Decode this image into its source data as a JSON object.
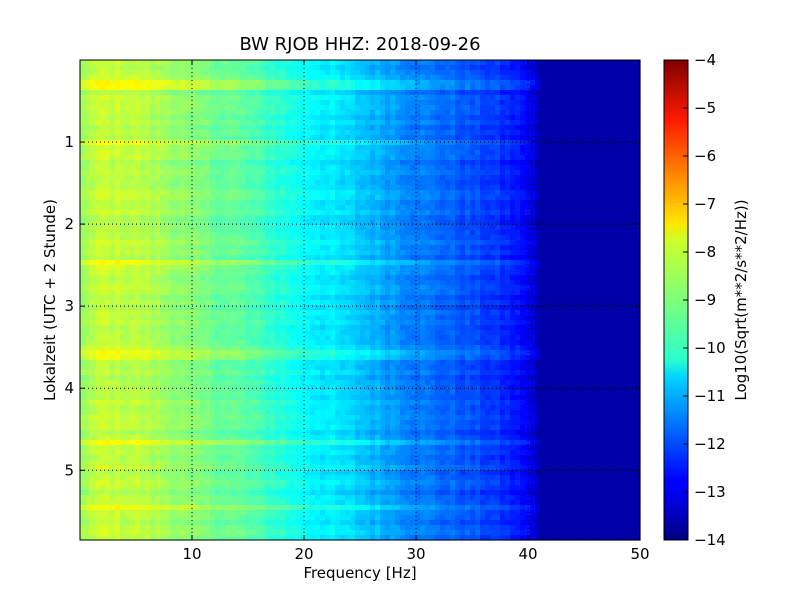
{
  "chart_data": {
    "type": "heatmap",
    "title": "BW RJOB HHZ: 2018-09-26",
    "xlabel": "Frequency [Hz]",
    "ylabel": "Lokalzeit (UTC + 2 Stunde)",
    "colorbar_label": "Log10(Sqrt(m**2/s**2/Hz))",
    "xlim": [
      0,
      50
    ],
    "ylim": [
      5.85,
      0
    ],
    "x_ticks": [
      {
        "value": 10,
        "label": "10"
      },
      {
        "value": 20,
        "label": "20"
      },
      {
        "value": 30,
        "label": "30"
      },
      {
        "value": 40,
        "label": "40"
      },
      {
        "value": 50,
        "label": "50"
      }
    ],
    "y_ticks": [
      {
        "value": 1,
        "label": "1"
      },
      {
        "value": 2,
        "label": "2"
      },
      {
        "value": 3,
        "label": "3"
      },
      {
        "value": 4,
        "label": "4"
      },
      {
        "value": 5,
        "label": "5"
      }
    ],
    "colorbar_range": [
      -14,
      -4
    ],
    "colorbar_ticks": [
      {
        "value": -4,
        "label": "−4"
      },
      {
        "value": -5,
        "label": "−5"
      },
      {
        "value": -6,
        "label": "−6"
      },
      {
        "value": -7,
        "label": "−7"
      },
      {
        "value": -8,
        "label": "−8"
      },
      {
        "value": -9,
        "label": "−9"
      },
      {
        "value": -10,
        "label": "−10"
      },
      {
        "value": -11,
        "label": "−11"
      },
      {
        "value": -12,
        "label": "−12"
      },
      {
        "value": -13,
        "label": "−13"
      },
      {
        "value": -14,
        "label": "−14"
      }
    ],
    "colormap": "jet",
    "grid": true,
    "approx_spectrum_profile": {
      "frequency_hz": [
        0,
        2,
        5,
        8,
        10,
        14,
        18,
        20,
        25,
        30,
        35,
        38,
        40,
        41,
        50
      ],
      "log10_amplitude": [
        -8.7,
        -8.3,
        -8.4,
        -8.7,
        -9.0,
        -9.3,
        -9.9,
        -10.2,
        -10.8,
        -11.5,
        -12.0,
        -12.4,
        -12.8,
        -13.6,
        -13.6
      ]
    },
    "bright_band_hours": [
      0.3,
      1.0,
      2.45,
      3.6,
      4.65,
      5.45
    ]
  }
}
